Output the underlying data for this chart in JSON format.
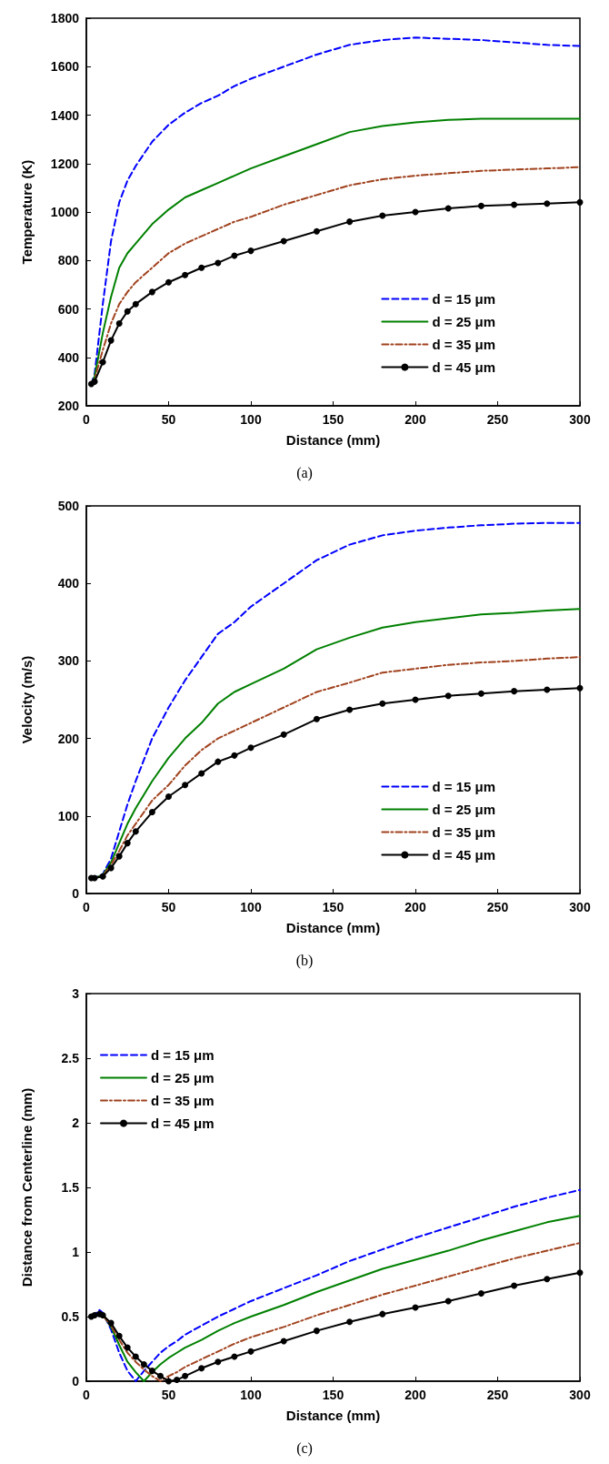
{
  "chart_data": [
    {
      "type": "line",
      "xlabel": "Distance (mm)",
      "ylabel": "Temperature (K)",
      "annotations": [
        "(a)"
      ],
      "xlim": [
        0,
        300
      ],
      "xticks": [
        0,
        50,
        100,
        150,
        200,
        250,
        300
      ],
      "ylim": [
        200,
        1800
      ],
      "yticks": [
        200,
        400,
        600,
        800,
        1000,
        1200,
        1400,
        1600,
        1800
      ],
      "grid": false,
      "legend": "bottom right",
      "x": [
        3,
        5,
        10,
        15,
        20,
        25,
        30,
        40,
        50,
        60,
        70,
        80,
        90,
        100,
        120,
        140,
        160,
        180,
        200,
        220,
        240,
        260,
        280,
        300
      ],
      "series": [
        {
          "name": "d = 15 μm",
          "color": "#0000ff",
          "line_style": "dashed",
          "marker": "none",
          "values": [
            290,
            330,
            620,
            880,
            1040,
            1130,
            1190,
            1290,
            1360,
            1410,
            1450,
            1480,
            1520,
            1550,
            1600,
            1650,
            1690,
            1710,
            1720,
            1715,
            1710,
            1700,
            1690,
            1685
          ]
        },
        {
          "name": "d = 25 μm",
          "color": "#008000",
          "line_style": "solid",
          "marker": "none",
          "values": [
            290,
            320,
            500,
            650,
            770,
            830,
            870,
            950,
            1010,
            1060,
            1090,
            1120,
            1150,
            1180,
            1230,
            1280,
            1330,
            1355,
            1370,
            1380,
            1385,
            1385,
            1385,
            1385
          ]
        },
        {
          "name": "d = 35 μm",
          "color": "#a0421e",
          "line_style": "dashdot",
          "marker": "none",
          "values": [
            290,
            310,
            430,
            540,
            620,
            670,
            710,
            770,
            830,
            870,
            900,
            930,
            960,
            980,
            1030,
            1070,
            1110,
            1135,
            1150,
            1160,
            1170,
            1175,
            1180,
            1185
          ]
        },
        {
          "name": "d = 45 μm",
          "color": "#000000",
          "line_style": "solid",
          "marker": "circle",
          "values": [
            290,
            300,
            380,
            470,
            540,
            590,
            620,
            670,
            710,
            740,
            770,
            790,
            820,
            840,
            880,
            920,
            960,
            985,
            1000,
            1015,
            1025,
            1030,
            1035,
            1040
          ]
        }
      ]
    },
    {
      "type": "line",
      "xlabel": "Distance (mm)",
      "ylabel": "Velocity (m/s)",
      "annotations": [
        "(b)"
      ],
      "xlim": [
        0,
        300
      ],
      "xticks": [
        0,
        50,
        100,
        150,
        200,
        250,
        300
      ],
      "ylim": [
        0,
        500
      ],
      "yticks": [
        0,
        100,
        200,
        300,
        400,
        500
      ],
      "grid": false,
      "legend": "bottom right",
      "x": [
        3,
        5,
        10,
        15,
        20,
        25,
        30,
        40,
        50,
        60,
        70,
        80,
        90,
        100,
        120,
        140,
        160,
        180,
        200,
        220,
        240,
        260,
        280,
        300
      ],
      "series": [
        {
          "name": "d = 15 μm",
          "color": "#0000ff",
          "line_style": "dashed",
          "marker": "none",
          "values": [
            20,
            20,
            25,
            45,
            80,
            115,
            145,
            200,
            240,
            275,
            305,
            335,
            350,
            370,
            400,
            430,
            450,
            462,
            468,
            472,
            475,
            477,
            478,
            478
          ]
        },
        {
          "name": "d = 25 μm",
          "color": "#008000",
          "line_style": "solid",
          "marker": "none",
          "values": [
            20,
            20,
            24,
            40,
            65,
            90,
            110,
            145,
            175,
            200,
            220,
            245,
            260,
            270,
            290,
            315,
            330,
            343,
            350,
            355,
            360,
            362,
            365,
            367
          ]
        },
        {
          "name": "d = 35 μm",
          "color": "#a0421e",
          "line_style": "dashdot",
          "marker": "none",
          "values": [
            20,
            20,
            23,
            37,
            55,
            75,
            90,
            120,
            140,
            165,
            185,
            200,
            210,
            220,
            240,
            260,
            272,
            285,
            290,
            295,
            298,
            300,
            303,
            305
          ]
        },
        {
          "name": "d = 45 μm",
          "color": "#000000",
          "line_style": "solid",
          "marker": "circle",
          "values": [
            20,
            20,
            22,
            33,
            48,
            65,
            80,
            105,
            125,
            140,
            155,
            170,
            178,
            188,
            205,
            225,
            237,
            245,
            250,
            255,
            258,
            261,
            263,
            265
          ]
        }
      ]
    },
    {
      "type": "line",
      "xlabel": "Distance (mm)",
      "ylabel": "Distance from Centerline (mm)",
      "annotations": [
        "(c)"
      ],
      "xlim": [
        0,
        300
      ],
      "xticks": [
        0,
        50,
        100,
        150,
        200,
        250,
        300
      ],
      "ylim": [
        0,
        3
      ],
      "yticks": [
        0,
        0.5,
        1,
        1.5,
        2,
        2.5,
        3
      ],
      "grid": false,
      "legend": "top left",
      "x": [
        3,
        5,
        8,
        10,
        15,
        20,
        25,
        30,
        35,
        40,
        45,
        50,
        55,
        60,
        70,
        80,
        90,
        100,
        120,
        140,
        160,
        180,
        200,
        220,
        240,
        260,
        280,
        300
      ],
      "series": [
        {
          "name": "d = 15 μm",
          "color": "#0000ff",
          "line_style": "dashed",
          "marker": "none",
          "values": [
            0.5,
            0.52,
            0.55,
            0.53,
            0.4,
            0.22,
            0.08,
            0.0,
            0.08,
            0.15,
            0.22,
            0.27,
            0.31,
            0.36,
            0.43,
            0.5,
            0.56,
            0.62,
            0.72,
            0.82,
            0.93,
            1.02,
            1.11,
            1.19,
            1.27,
            1.35,
            1.42,
            1.48
          ]
        },
        {
          "name": "d = 25 μm",
          "color": "#008000",
          "line_style": "solid",
          "marker": "none",
          "values": [
            null,
            null,
            null,
            0.52,
            0.42,
            0.28,
            0.15,
            0.07,
            0.0,
            0.07,
            0.13,
            0.18,
            0.22,
            0.26,
            0.32,
            0.39,
            0.45,
            0.5,
            0.59,
            0.69,
            0.78,
            0.87,
            0.94,
            1.01,
            1.09,
            1.16,
            1.23,
            1.28
          ]
        },
        {
          "name": "d = 35 μm",
          "color": "#a0421e",
          "line_style": "dashdot",
          "marker": "none",
          "values": [
            0.5,
            0.51,
            0.52,
            0.51,
            0.43,
            0.32,
            0.22,
            0.15,
            0.09,
            0.04,
            0.0,
            0.04,
            0.07,
            0.11,
            0.17,
            0.23,
            0.29,
            0.34,
            0.42,
            0.51,
            0.59,
            0.67,
            0.74,
            0.81,
            0.88,
            0.95,
            1.01,
            1.07
          ]
        },
        {
          "name": "d = 45 μm",
          "color": "#000000",
          "line_style": "solid",
          "marker": "circle",
          "values": [
            0.5,
            0.51,
            0.52,
            0.51,
            0.45,
            0.35,
            0.26,
            0.19,
            0.13,
            0.08,
            0.04,
            0.0,
            0.01,
            0.04,
            0.1,
            0.15,
            0.19,
            0.23,
            0.31,
            0.39,
            0.46,
            0.52,
            0.57,
            0.62,
            0.68,
            0.74,
            0.79,
            0.84
          ]
        }
      ]
    }
  ]
}
